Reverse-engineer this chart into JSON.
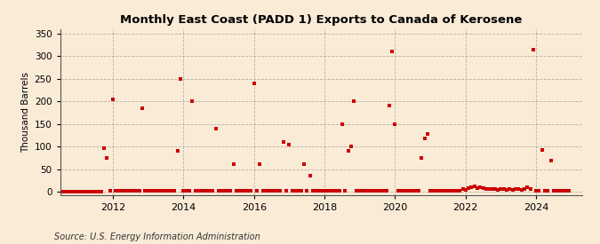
{
  "title": "Monthly East Coast (PADD 1) Exports to Canada of Kerosene",
  "ylabel": "Thousand Barrels",
  "source": "Source: U.S. Energy Information Administration",
  "background_color": "#faebd7",
  "marker_color": "#cc0000",
  "ylim": [
    -8,
    360
  ],
  "yticks": [
    0,
    50,
    100,
    150,
    200,
    250,
    300,
    350
  ],
  "xlim": [
    2010.5,
    2025.3
  ],
  "xticks": [
    2012,
    2014,
    2016,
    2018,
    2020,
    2022,
    2024
  ],
  "grid_color": "#999999",
  "data": [
    {
      "date": 2010.583,
      "value": 0
    },
    {
      "date": 2010.667,
      "value": 0
    },
    {
      "date": 2010.75,
      "value": 0
    },
    {
      "date": 2010.833,
      "value": 0
    },
    {
      "date": 2010.917,
      "value": 0
    },
    {
      "date": 2011.0,
      "value": 0
    },
    {
      "date": 2011.083,
      "value": 0
    },
    {
      "date": 2011.167,
      "value": 0
    },
    {
      "date": 2011.25,
      "value": 0
    },
    {
      "date": 2011.333,
      "value": 0
    },
    {
      "date": 2011.417,
      "value": 0
    },
    {
      "date": 2011.5,
      "value": 0
    },
    {
      "date": 2011.583,
      "value": 0
    },
    {
      "date": 2011.667,
      "value": 0
    },
    {
      "date": 2011.75,
      "value": 97
    },
    {
      "date": 2011.833,
      "value": 75
    },
    {
      "date": 2011.917,
      "value": 2
    },
    {
      "date": 2012.0,
      "value": 205
    },
    {
      "date": 2012.083,
      "value": 2
    },
    {
      "date": 2012.167,
      "value": 2
    },
    {
      "date": 2012.25,
      "value": 2
    },
    {
      "date": 2012.333,
      "value": 2
    },
    {
      "date": 2012.417,
      "value": 2
    },
    {
      "date": 2012.5,
      "value": 2
    },
    {
      "date": 2012.583,
      "value": 2
    },
    {
      "date": 2012.667,
      "value": 2
    },
    {
      "date": 2012.75,
      "value": 2
    },
    {
      "date": 2012.833,
      "value": 185
    },
    {
      "date": 2012.917,
      "value": 2
    },
    {
      "date": 2013.0,
      "value": 2
    },
    {
      "date": 2013.083,
      "value": 2
    },
    {
      "date": 2013.167,
      "value": 2
    },
    {
      "date": 2013.25,
      "value": 2
    },
    {
      "date": 2013.333,
      "value": 2
    },
    {
      "date": 2013.417,
      "value": 2
    },
    {
      "date": 2013.5,
      "value": 2
    },
    {
      "date": 2013.583,
      "value": 2
    },
    {
      "date": 2013.667,
      "value": 2
    },
    {
      "date": 2013.75,
      "value": 2
    },
    {
      "date": 2013.833,
      "value": 90
    },
    {
      "date": 2013.917,
      "value": 250
    },
    {
      "date": 2014.0,
      "value": 2
    },
    {
      "date": 2014.083,
      "value": 2
    },
    {
      "date": 2014.167,
      "value": 2
    },
    {
      "date": 2014.25,
      "value": 200
    },
    {
      "date": 2014.333,
      "value": 2
    },
    {
      "date": 2014.417,
      "value": 2
    },
    {
      "date": 2014.5,
      "value": 2
    },
    {
      "date": 2014.583,
      "value": 2
    },
    {
      "date": 2014.667,
      "value": 2
    },
    {
      "date": 2014.75,
      "value": 2
    },
    {
      "date": 2014.833,
      "value": 2
    },
    {
      "date": 2014.917,
      "value": 140
    },
    {
      "date": 2015.0,
      "value": 2
    },
    {
      "date": 2015.083,
      "value": 2
    },
    {
      "date": 2015.167,
      "value": 2
    },
    {
      "date": 2015.25,
      "value": 2
    },
    {
      "date": 2015.333,
      "value": 2
    },
    {
      "date": 2015.417,
      "value": 60
    },
    {
      "date": 2015.5,
      "value": 2
    },
    {
      "date": 2015.583,
      "value": 2
    },
    {
      "date": 2015.667,
      "value": 2
    },
    {
      "date": 2015.75,
      "value": 2
    },
    {
      "date": 2015.833,
      "value": 2
    },
    {
      "date": 2015.917,
      "value": 2
    },
    {
      "date": 2016.0,
      "value": 240
    },
    {
      "date": 2016.083,
      "value": 2
    },
    {
      "date": 2016.167,
      "value": 60
    },
    {
      "date": 2016.25,
      "value": 2
    },
    {
      "date": 2016.333,
      "value": 2
    },
    {
      "date": 2016.417,
      "value": 2
    },
    {
      "date": 2016.5,
      "value": 2
    },
    {
      "date": 2016.583,
      "value": 2
    },
    {
      "date": 2016.667,
      "value": 2
    },
    {
      "date": 2016.75,
      "value": 2
    },
    {
      "date": 2016.833,
      "value": 110
    },
    {
      "date": 2016.917,
      "value": 2
    },
    {
      "date": 2017.0,
      "value": 105
    },
    {
      "date": 2017.083,
      "value": 2
    },
    {
      "date": 2017.167,
      "value": 2
    },
    {
      "date": 2017.25,
      "value": 2
    },
    {
      "date": 2017.333,
      "value": 2
    },
    {
      "date": 2017.417,
      "value": 60
    },
    {
      "date": 2017.5,
      "value": 2
    },
    {
      "date": 2017.583,
      "value": 35
    },
    {
      "date": 2017.667,
      "value": 2
    },
    {
      "date": 2017.75,
      "value": 2
    },
    {
      "date": 2017.833,
      "value": 2
    },
    {
      "date": 2017.917,
      "value": 2
    },
    {
      "date": 2018.0,
      "value": 2
    },
    {
      "date": 2018.083,
      "value": 2
    },
    {
      "date": 2018.167,
      "value": 2
    },
    {
      "date": 2018.25,
      "value": 2
    },
    {
      "date": 2018.333,
      "value": 2
    },
    {
      "date": 2018.417,
      "value": 2
    },
    {
      "date": 2018.5,
      "value": 150
    },
    {
      "date": 2018.583,
      "value": 2
    },
    {
      "date": 2018.667,
      "value": 90
    },
    {
      "date": 2018.75,
      "value": 100
    },
    {
      "date": 2018.833,
      "value": 200
    },
    {
      "date": 2018.917,
      "value": 2
    },
    {
      "date": 2019.0,
      "value": 2
    },
    {
      "date": 2019.083,
      "value": 2
    },
    {
      "date": 2019.167,
      "value": 2
    },
    {
      "date": 2019.25,
      "value": 2
    },
    {
      "date": 2019.333,
      "value": 2
    },
    {
      "date": 2019.417,
      "value": 2
    },
    {
      "date": 2019.5,
      "value": 2
    },
    {
      "date": 2019.583,
      "value": 2
    },
    {
      "date": 2019.667,
      "value": 2
    },
    {
      "date": 2019.75,
      "value": 2
    },
    {
      "date": 2019.833,
      "value": 190
    },
    {
      "date": 2019.917,
      "value": 310
    },
    {
      "date": 2020.0,
      "value": 150
    },
    {
      "date": 2020.083,
      "value": 2
    },
    {
      "date": 2020.167,
      "value": 2
    },
    {
      "date": 2020.25,
      "value": 2
    },
    {
      "date": 2020.333,
      "value": 2
    },
    {
      "date": 2020.417,
      "value": 2
    },
    {
      "date": 2020.5,
      "value": 2
    },
    {
      "date": 2020.583,
      "value": 2
    },
    {
      "date": 2020.667,
      "value": 2
    },
    {
      "date": 2020.75,
      "value": 75
    },
    {
      "date": 2020.833,
      "value": 117
    },
    {
      "date": 2020.917,
      "value": 127
    },
    {
      "date": 2021.0,
      "value": 2
    },
    {
      "date": 2021.083,
      "value": 2
    },
    {
      "date": 2021.167,
      "value": 2
    },
    {
      "date": 2021.25,
      "value": 2
    },
    {
      "date": 2021.333,
      "value": 2
    },
    {
      "date": 2021.417,
      "value": 2
    },
    {
      "date": 2021.5,
      "value": 2
    },
    {
      "date": 2021.583,
      "value": 2
    },
    {
      "date": 2021.667,
      "value": 2
    },
    {
      "date": 2021.75,
      "value": 2
    },
    {
      "date": 2021.833,
      "value": 2
    },
    {
      "date": 2021.917,
      "value": 5
    },
    {
      "date": 2022.0,
      "value": 3
    },
    {
      "date": 2022.083,
      "value": 8
    },
    {
      "date": 2022.167,
      "value": 10
    },
    {
      "date": 2022.25,
      "value": 12
    },
    {
      "date": 2022.333,
      "value": 8
    },
    {
      "date": 2022.417,
      "value": 10
    },
    {
      "date": 2022.5,
      "value": 8
    },
    {
      "date": 2022.583,
      "value": 5
    },
    {
      "date": 2022.667,
      "value": 5
    },
    {
      "date": 2022.75,
      "value": 5
    },
    {
      "date": 2022.833,
      "value": 5
    },
    {
      "date": 2022.917,
      "value": 3
    },
    {
      "date": 2023.0,
      "value": 5
    },
    {
      "date": 2023.083,
      "value": 5
    },
    {
      "date": 2023.167,
      "value": 3
    },
    {
      "date": 2023.25,
      "value": 5
    },
    {
      "date": 2023.333,
      "value": 3
    },
    {
      "date": 2023.417,
      "value": 5
    },
    {
      "date": 2023.5,
      "value": 5
    },
    {
      "date": 2023.583,
      "value": 3
    },
    {
      "date": 2023.667,
      "value": 5
    },
    {
      "date": 2023.75,
      "value": 10
    },
    {
      "date": 2023.833,
      "value": 5
    },
    {
      "date": 2023.917,
      "value": 315
    },
    {
      "date": 2024.0,
      "value": 2
    },
    {
      "date": 2024.083,
      "value": 2
    },
    {
      "date": 2024.167,
      "value": 92
    },
    {
      "date": 2024.25,
      "value": 2
    },
    {
      "date": 2024.333,
      "value": 2
    },
    {
      "date": 2024.417,
      "value": 68
    },
    {
      "date": 2024.5,
      "value": 2
    },
    {
      "date": 2024.583,
      "value": 2
    },
    {
      "date": 2024.667,
      "value": 2
    },
    {
      "date": 2024.75,
      "value": 2
    },
    {
      "date": 2024.833,
      "value": 2
    },
    {
      "date": 2024.917,
      "value": 2
    }
  ]
}
